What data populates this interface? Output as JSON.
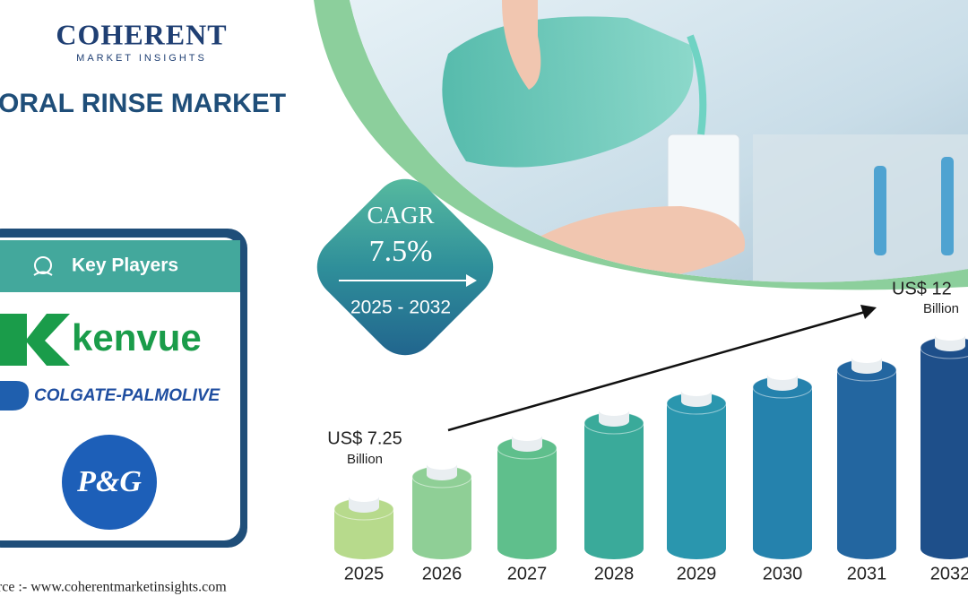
{
  "header": {
    "brand": "COHERENT",
    "tagline": "MARKET INSIGHTS",
    "title": "ORAL RINSE MARKET"
  },
  "key_players": {
    "heading": "Key Players",
    "players": [
      "kenvue",
      "COLGATE-PALMOLIVE",
      "P&G"
    ]
  },
  "cagr": {
    "label": "CAGR",
    "value": "7.5%",
    "period": "2025 - 2032"
  },
  "market": {
    "start": {
      "value": "US$ 7.25",
      "unit": "Billion"
    },
    "end": {
      "value": "US$ 12",
      "unit": "Billion"
    }
  },
  "years": [
    "2025",
    "2026",
    "2027",
    "2028",
    "2029",
    "2030",
    "2031",
    "2032"
  ],
  "footer": "Source :- www.coherentmarketinsights.com"
}
